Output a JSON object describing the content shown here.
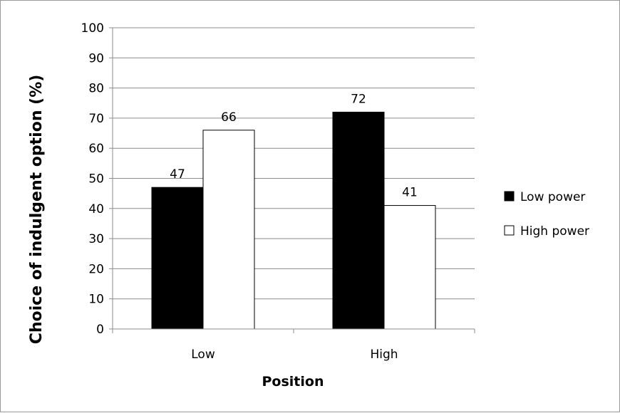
{
  "chart_data": {
    "type": "bar",
    "categories": [
      "Low",
      "High"
    ],
    "series": [
      {
        "name": "Low power",
        "values": [
          47,
          72
        ],
        "color": "#000000"
      },
      {
        "name": "High power",
        "values": [
          66,
          41
        ],
        "color": "#ffffff"
      }
    ],
    "xlabel": "Position",
    "ylabel": "Choice of indulgent option (%)",
    "ylim": [
      0,
      100
    ],
    "yticks": [
      0,
      10,
      20,
      30,
      40,
      50,
      60,
      70,
      80,
      90,
      100
    ],
    "grid": true,
    "legend_position": "right",
    "data_labels": true
  }
}
